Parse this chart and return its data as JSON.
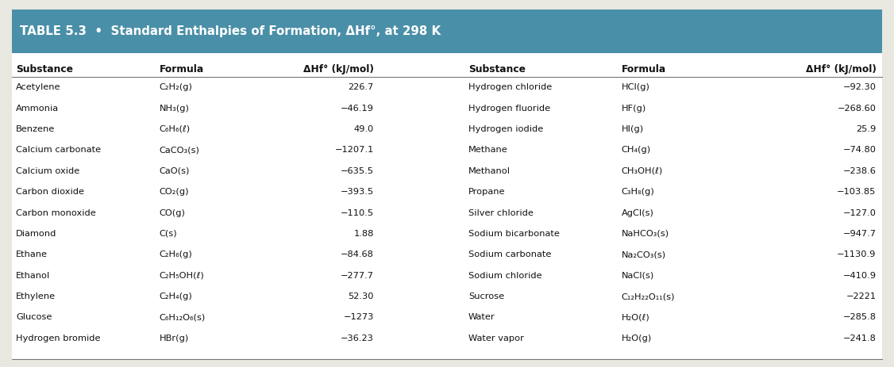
{
  "title": "TABLE 5.3  •  Standard Enthalpies of Formation, ΔHf°, at 298 K",
  "header_bg": "#4a8fa8",
  "header_text_color": "#ffffff",
  "col_headers": [
    "Substance",
    "Formula",
    "ΔHf° (kJ/mol)",
    "Substance",
    "Formula",
    "ΔHf° (kJ/mol)"
  ],
  "left_data": [
    [
      "Acetylene",
      "C₂H₂(g)",
      "226.7"
    ],
    [
      "Ammonia",
      "NH₃(g)",
      "−46.19"
    ],
    [
      "Benzene",
      "C₆H₆(ℓ)",
      "49.0"
    ],
    [
      "Calcium carbonate",
      "CaCO₃(s)",
      "−1207.1"
    ],
    [
      "Calcium oxide",
      "CaO(s)",
      "−635.5"
    ],
    [
      "Carbon dioxide",
      "CO₂(g)",
      "−393.5"
    ],
    [
      "Carbon monoxide",
      "CO(g)",
      "−110.5"
    ],
    [
      "Diamond",
      "C(s)",
      "1.88"
    ],
    [
      "Ethane",
      "C₂H₆(g)",
      "−84.68"
    ],
    [
      "Ethanol",
      "C₂H₅OH(ℓ)",
      "−277.7"
    ],
    [
      "Ethylene",
      "C₂H₄(g)",
      "52.30"
    ],
    [
      "Glucose",
      "C₆H₁₂O₆(s)",
      "−1273"
    ],
    [
      "Hydrogen bromide",
      "HBr(g)",
      "−36.23"
    ]
  ],
  "right_data": [
    [
      "Hydrogen chloride",
      "HCl(g)",
      "−92.30"
    ],
    [
      "Hydrogen fluoride",
      "HF(g)",
      "−268.60"
    ],
    [
      "Hydrogen iodide",
      "HI(g)",
      "25.9"
    ],
    [
      "Methane",
      "CH₄(g)",
      "−74.80"
    ],
    [
      "Methanol",
      "CH₃OH(ℓ)",
      "−238.6"
    ],
    [
      "Propane",
      "C₃H₈(g)",
      "−103.85"
    ],
    [
      "Silver chloride",
      "AgCl(s)",
      "−127.0"
    ],
    [
      "Sodium bicarbonate",
      "NaHCO₃(s)",
      "−947.7"
    ],
    [
      "Sodium carbonate",
      "Na₂CO₃(s)",
      "−1130.9"
    ],
    [
      "Sodium chloride",
      "NaCl(s)",
      "−410.9"
    ],
    [
      "Sucrose",
      "C₁₂H₂₂O₁₁(s)",
      "−2221"
    ],
    [
      "Water",
      "H₂O(ℓ)",
      "−285.8"
    ],
    [
      "Water vapor",
      "H₂O(g)",
      "−241.8"
    ]
  ],
  "bg_color": "#e8e8e0",
  "table_bg": "#ffffff",
  "divider_color": "#777777",
  "text_color": "#111111"
}
